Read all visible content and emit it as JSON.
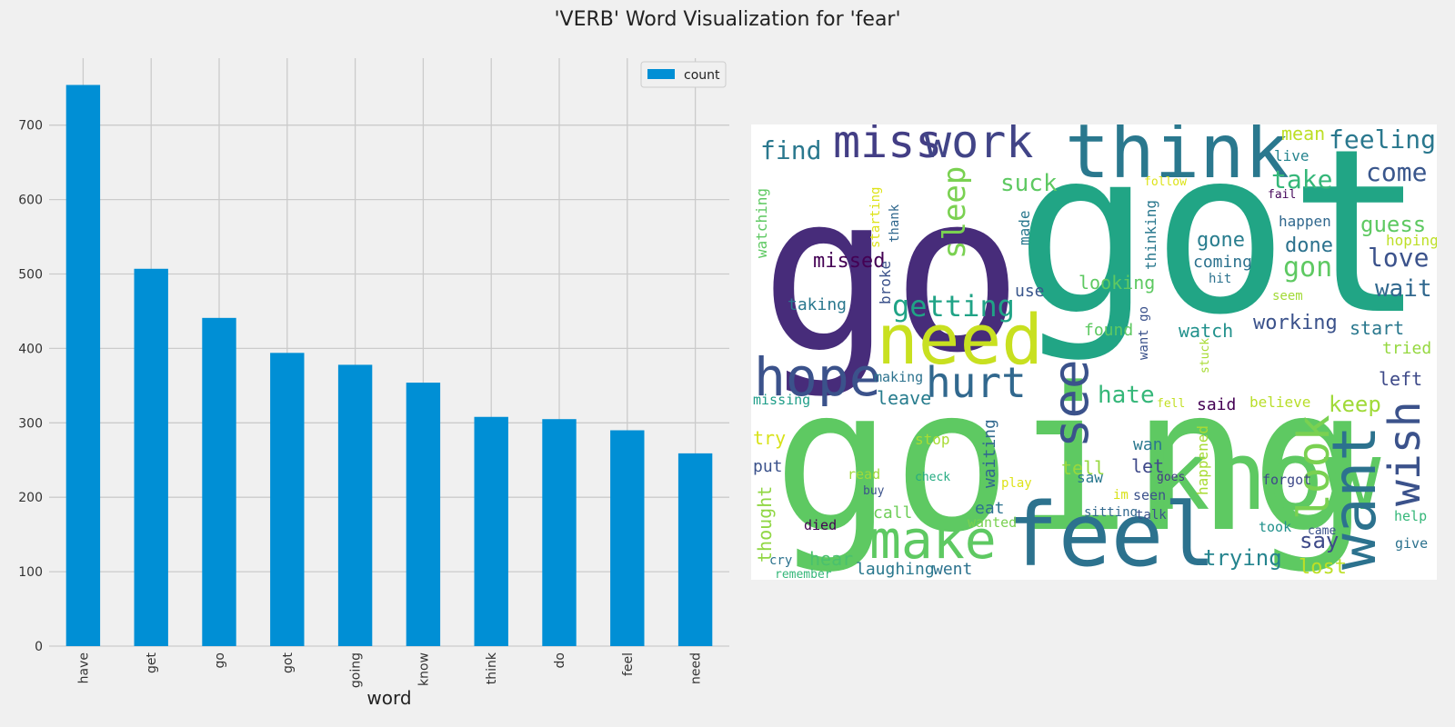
{
  "figure": {
    "title": "'VERB' Word Visualization for 'fear'"
  },
  "chart_data": [
    {
      "type": "bar",
      "categories": [
        "have",
        "get",
        "go",
        "got",
        "going",
        "know",
        "think",
        "do",
        "feel",
        "need"
      ],
      "series": [
        {
          "name": "count",
          "values": [
            754,
            507,
            441,
            394,
            378,
            354,
            308,
            305,
            290,
            259
          ],
          "color": "#008fd5"
        }
      ],
      "xlabel": "word",
      "ylabel": "",
      "ylim": [
        0,
        790
      ],
      "yticks": [
        0,
        100,
        200,
        300,
        400,
        500,
        600,
        700
      ],
      "grid": true,
      "legend": "top-right"
    },
    {
      "type": "wordcloud",
      "words": [
        {
          "text": "going",
          "size": 218,
          "color": "#5ec962"
        },
        {
          "text": "got",
          "size": 250,
          "color": "#21a585"
        },
        {
          "text": "go",
          "size": 240,
          "color": "#472c7a"
        },
        {
          "text": "know",
          "size": 104,
          "color": "#5ec962"
        },
        {
          "text": "think",
          "size": 82,
          "color": "#2a788e"
        },
        {
          "text": "feel",
          "size": 96,
          "color": "#2c728e"
        },
        {
          "text": "need",
          "size": 76,
          "color": "#c8e020"
        },
        {
          "text": "hope",
          "size": 58,
          "color": "#3b528b"
        },
        {
          "text": "make",
          "size": 58,
          "color": "#5ec962"
        },
        {
          "text": "miss",
          "size": 50,
          "color": "#433e85"
        },
        {
          "text": "work",
          "size": 50,
          "color": "#414487"
        },
        {
          "text": "want",
          "size": 66,
          "color": "#2c728e"
        },
        {
          "text": "hurt",
          "size": 46,
          "color": "#31688e"
        },
        {
          "text": "see",
          "size": 54,
          "color": "#3b528b"
        },
        {
          "text": "wish",
          "size": 48,
          "color": "#3b528b"
        },
        {
          "text": "look",
          "size": 48,
          "color": "#7ad151"
        },
        {
          "text": "feeling",
          "size": 28,
          "color": "#2a788e"
        },
        {
          "text": "come",
          "size": 28,
          "color": "#39568c"
        },
        {
          "text": "take",
          "size": 28,
          "color": "#35b779"
        },
        {
          "text": "find",
          "size": 28,
          "color": "#2a788e"
        },
        {
          "text": "sleep",
          "size": 34,
          "color": "#7ad151"
        },
        {
          "text": "suck",
          "size": 26,
          "color": "#5ec962"
        },
        {
          "text": "getting",
          "size": 32,
          "color": "#20a386"
        },
        {
          "text": "missed",
          "size": 22,
          "color": "#440154"
        },
        {
          "text": "taking",
          "size": 18,
          "color": "#2a788e"
        },
        {
          "text": "love",
          "size": 28,
          "color": "#3b528b"
        },
        {
          "text": "wait",
          "size": 26,
          "color": "#31688e"
        },
        {
          "text": "guess",
          "size": 24,
          "color": "#5ec962"
        },
        {
          "text": "gon",
          "size": 30,
          "color": "#5ec962"
        },
        {
          "text": "gone",
          "size": 22,
          "color": "#287d8e"
        },
        {
          "text": "coming",
          "size": 18,
          "color": "#2c728e"
        },
        {
          "text": "done",
          "size": 22,
          "color": "#2c728e"
        },
        {
          "text": "happen",
          "size": 16,
          "color": "#31688e"
        },
        {
          "text": "hoping",
          "size": 16,
          "color": "#bddf26"
        },
        {
          "text": "looking",
          "size": 20,
          "color": "#5ec962"
        },
        {
          "text": "mean",
          "size": 20,
          "color": "#bddf26"
        },
        {
          "text": "live",
          "size": 16,
          "color": "#25848e"
        },
        {
          "text": "follow",
          "size": 13,
          "color": "#dde318"
        },
        {
          "text": "fail",
          "size": 13,
          "color": "#46075a"
        },
        {
          "text": "hit",
          "size": 14,
          "color": "#2c728e"
        },
        {
          "text": "seem",
          "size": 14,
          "color": "#a2da37"
        },
        {
          "text": "working",
          "size": 22,
          "color": "#3b528b"
        },
        {
          "text": "start",
          "size": 20,
          "color": "#2a788e"
        },
        {
          "text": "tried",
          "size": 18,
          "color": "#95d840"
        },
        {
          "text": "watch",
          "size": 20,
          "color": "#21918c"
        },
        {
          "text": "found",
          "size": 18,
          "color": "#5ec962"
        },
        {
          "text": "use",
          "size": 18,
          "color": "#39568c"
        },
        {
          "text": "made",
          "size": 16,
          "color": "#2a788e"
        },
        {
          "text": "hate",
          "size": 26,
          "color": "#35b779"
        },
        {
          "text": "said",
          "size": 18,
          "color": "#440154"
        },
        {
          "text": "believe",
          "size": 16,
          "color": "#b8de29"
        },
        {
          "text": "keep",
          "size": 24,
          "color": "#a0da39"
        },
        {
          "text": "left",
          "size": 20,
          "color": "#3e4a89"
        },
        {
          "text": "fell",
          "size": 13,
          "color": "#c2df23"
        },
        {
          "text": "leave",
          "size": 20,
          "color": "#287d8e"
        },
        {
          "text": "making",
          "size": 15,
          "color": "#2c728e"
        },
        {
          "text": "missing",
          "size": 15,
          "color": "#1f9e89"
        },
        {
          "text": "try",
          "size": 20,
          "color": "#d8e219"
        },
        {
          "text": "stop",
          "size": 16,
          "color": "#a8db34"
        },
        {
          "text": "eat",
          "size": 18,
          "color": "#2c728e"
        },
        {
          "text": "wan",
          "size": 18,
          "color": "#2a788e"
        },
        {
          "text": "waiting",
          "size": 18,
          "color": "#31688e"
        },
        {
          "text": "put",
          "size": 18,
          "color": "#3b528b"
        },
        {
          "text": "tell",
          "size": 20,
          "color": "#98d83e"
        },
        {
          "text": "let",
          "size": 20,
          "color": "#3e4989"
        },
        {
          "text": "read",
          "size": 15,
          "color": "#a0da39"
        },
        {
          "text": "check",
          "size": 13,
          "color": "#25ab82"
        },
        {
          "text": "play",
          "size": 14,
          "color": "#dde318"
        },
        {
          "text": "saw",
          "size": 16,
          "color": "#2a788e"
        },
        {
          "text": "im",
          "size": 14,
          "color": "#d8e219"
        },
        {
          "text": "goes",
          "size": 13,
          "color": "#443a83"
        },
        {
          "text": "seen",
          "size": 15,
          "color": "#3b528b"
        },
        {
          "text": "happened",
          "size": 16,
          "color": "#a8db34"
        },
        {
          "text": "forgot",
          "size": 15,
          "color": "#3e4989"
        },
        {
          "text": "buy",
          "size": 13,
          "color": "#3b528b"
        },
        {
          "text": "call",
          "size": 18,
          "color": "#6ece58"
        },
        {
          "text": "thought",
          "size": 20,
          "color": "#90d743"
        },
        {
          "text": "died",
          "size": 15,
          "color": "#440154"
        },
        {
          "text": "wanted",
          "size": 15,
          "color": "#7ad151"
        },
        {
          "text": "sitting",
          "size": 14,
          "color": "#31688e"
        },
        {
          "text": "talk",
          "size": 14,
          "color": "#3b528b"
        },
        {
          "text": "took",
          "size": 15,
          "color": "#21918c"
        },
        {
          "text": "came",
          "size": 13,
          "color": "#3b528b"
        },
        {
          "text": "help",
          "size": 15,
          "color": "#35b779"
        },
        {
          "text": "say",
          "size": 24,
          "color": "#3e4a89"
        },
        {
          "text": "give",
          "size": 15,
          "color": "#2c728e"
        },
        {
          "text": "trying",
          "size": 24,
          "color": "#25848e"
        },
        {
          "text": "lost",
          "size": 22,
          "color": "#bddf26"
        },
        {
          "text": "hear",
          "size": 20,
          "color": "#4ac16d"
        },
        {
          "text": "cry",
          "size": 14,
          "color": "#2c728e"
        },
        {
          "text": "remember",
          "size": 13,
          "color": "#35b779"
        },
        {
          "text": "laughing",
          "size": 18,
          "color": "#2a788e"
        },
        {
          "text": "went",
          "size": 18,
          "color": "#2c728e"
        },
        {
          "text": "watching",
          "size": 16,
          "color": "#5ec962"
        },
        {
          "text": "starting",
          "size": 14,
          "color": "#dde318"
        },
        {
          "text": "thank",
          "size": 14,
          "color": "#31688e"
        },
        {
          "text": "broke",
          "size": 16,
          "color": "#3b528b"
        },
        {
          "text": "thinking",
          "size": 16,
          "color": "#2a788e"
        },
        {
          "text": "want go",
          "size": 14,
          "color": "#3b528b"
        },
        {
          "text": "stuck",
          "size": 13,
          "color": "#a8db34"
        }
      ]
    }
  ]
}
